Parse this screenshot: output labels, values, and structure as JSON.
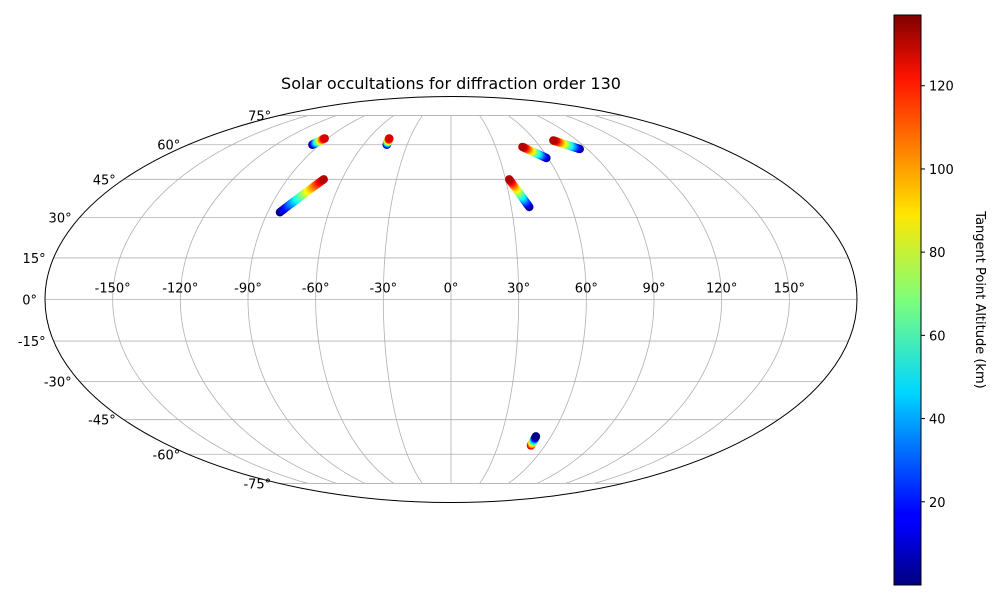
{
  "chart_data": {
    "type": "scatter",
    "projection": "mollweide",
    "title": "Solar occultations for diffraction order 130",
    "grid": true,
    "x_ticks": [
      "-150°",
      "-120°",
      "-90°",
      "-60°",
      "-30°",
      "0°",
      "30°",
      "60°",
      "90°",
      "120°",
      "150°"
    ],
    "y_ticks": [
      "-75°",
      "-60°",
      "-45°",
      "-30°",
      "-15°",
      "0°",
      "15°",
      "30°",
      "45°",
      "60°",
      "75°"
    ],
    "colorbar": {
      "label": "Tangent Point Altitude (km)",
      "colormap": "jet",
      "range": [
        0,
        137
      ],
      "ticks": [
        "20",
        "40",
        "60",
        "80",
        "100",
        "120"
      ]
    },
    "series": [
      {
        "start": [
          -95,
          60
        ],
        "end": [
          -92,
          63
        ],
        "alt_start": 0,
        "alt_end": 125
      },
      {
        "start": [
          -44,
          60
        ],
        "end": [
          -45,
          63
        ],
        "alt_start": 0,
        "alt_end": 125
      },
      {
        "start": [
          -84,
          32
        ],
        "end": [
          -70,
          45
        ],
        "alt_start": 0,
        "alt_end": 130
      },
      {
        "start": [
          39,
          34
        ],
        "end": [
          32,
          45
        ],
        "alt_start": 0,
        "alt_end": 130
      },
      {
        "start": [
          59,
          54
        ],
        "end": [
          48,
          59
        ],
        "alt_start": 0,
        "alt_end": 130
      },
      {
        "start": [
          85,
          58
        ],
        "end": [
          73,
          62
        ],
        "alt_start": 0,
        "alt_end": 130
      },
      {
        "start": [
          51,
          -56
        ],
        "end": [
          51,
          -52
        ],
        "alt_start": 130,
        "alt_end": 0
      }
    ]
  }
}
